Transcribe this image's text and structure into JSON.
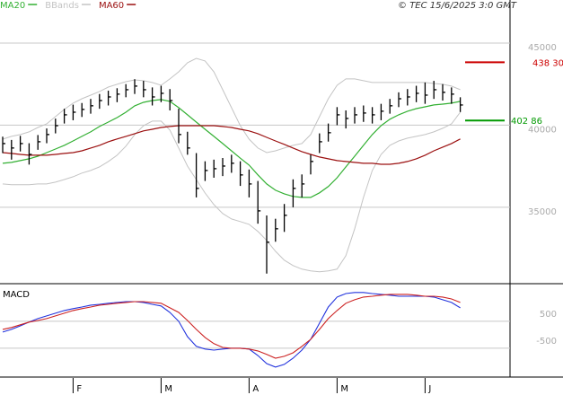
{
  "chart_data": [
    {
      "type": "hlc",
      "categories": [
        null,
        null,
        null,
        null,
        null,
        null,
        null,
        null,
        "F",
        null,
        null,
        null,
        null,
        null,
        null,
        null,
        null,
        null,
        "M",
        null,
        null,
        null,
        null,
        null,
        null,
        null,
        null,
        null,
        "A",
        null,
        null,
        null,
        null,
        null,
        null,
        null,
        null,
        null,
        "M",
        null,
        null,
        null,
        null,
        null,
        null,
        null,
        null,
        null,
        "J",
        null,
        null,
        null,
        null
      ],
      "high": [
        39300,
        39100,
        39350,
        38900,
        39400,
        39800,
        40400,
        41000,
        41250,
        41350,
        41600,
        41900,
        42100,
        42250,
        42500,
        42800,
        42700,
        42300,
        42400,
        42200,
        41000,
        39600,
        38300,
        37800,
        37900,
        38000,
        38200,
        37800,
        37300,
        36600,
        34500,
        34300,
        35200,
        36700,
        37000,
        38200,
        39500,
        40100,
        41100,
        40900,
        41100,
        41200,
        41100,
        41300,
        41600,
        42000,
        42200,
        42400,
        42600,
        42700,
        42500,
        42300,
        41700
      ],
      "low": [
        38300,
        37900,
        38400,
        37600,
        38500,
        38900,
        39500,
        40100,
        40300,
        40500,
        40700,
        41000,
        41200,
        41400,
        41700,
        41900,
        41700,
        41200,
        41400,
        40900,
        38900,
        38200,
        35600,
        36600,
        36800,
        36900,
        37100,
        36300,
        35600,
        34000,
        30960,
        32900,
        33500,
        35000,
        35600,
        37000,
        38300,
        39000,
        40000,
        39800,
        40100,
        40200,
        40100,
        40300,
        40700,
        41100,
        41200,
        41400,
        41300,
        41600,
        41500,
        41300,
        40800
      ],
      "close": [
        38880,
        38610,
        38880,
        38220,
        38990,
        39430,
        39970,
        40630,
        40790,
        40960,
        41180,
        41500,
        41720,
        41890,
        42160,
        42380,
        42160,
        41720,
        41940,
        41500,
        39430,
        38610,
        36150,
        37240,
        37350,
        37510,
        37680,
        36970,
        36420,
        34780,
        32870,
        33690,
        34510,
        36150,
        36420,
        37790,
        38990,
        39540,
        40630,
        40410,
        40630,
        40740,
        40630,
        40850,
        41180,
        41610,
        41720,
        41940,
        41830,
        42160,
        42000,
        41890,
        41230
      ],
      "color": "#000000",
      "ylim": [
        30400,
        46640
      ],
      "yticks": [
        35000,
        40000,
        45000
      ],
      "grid": true,
      "lines": [
        {
          "name": "MA20",
          "color": "#33b033",
          "values": [
            37680,
            37730,
            37840,
            37950,
            38110,
            38330,
            38550,
            38770,
            39040,
            39320,
            39590,
            39920,
            40190,
            40460,
            40790,
            41180,
            41390,
            41500,
            41560,
            41450,
            41070,
            40630,
            40190,
            39750,
            39320,
            38880,
            38440,
            37990,
            37570,
            36970,
            36420,
            36040,
            35820,
            35660,
            35600,
            35600,
            35880,
            36260,
            36800,
            37460,
            38110,
            38770,
            39430,
            39970,
            40360,
            40630,
            40850,
            41010,
            41120,
            41230,
            41280,
            41340,
            41450
          ]
        },
        {
          "name": "BBands",
          "color": "#c4c4c4",
          "upper": [
            39150,
            39320,
            39430,
            39590,
            39860,
            40080,
            40520,
            40960,
            41340,
            41610,
            41830,
            42050,
            42320,
            42490,
            42650,
            42760,
            42710,
            42600,
            42430,
            42820,
            43250,
            43800,
            44070,
            43910,
            43250,
            42160,
            41070,
            39970,
            39150,
            38610,
            38330,
            38440,
            38610,
            38770,
            38880,
            39430,
            40520,
            41610,
            42430,
            42820,
            42820,
            42710,
            42600,
            42600,
            42600,
            42600,
            42600,
            42600,
            42600,
            42540,
            42490,
            42380,
            42160
          ],
          "lower": [
            36420,
            36370,
            36370,
            36370,
            36420,
            36420,
            36530,
            36690,
            36860,
            37080,
            37240,
            37460,
            37790,
            38170,
            38720,
            39430,
            39970,
            40250,
            40250,
            39700,
            38610,
            37510,
            36690,
            35870,
            35160,
            34620,
            34290,
            34130,
            33960,
            33530,
            32980,
            32320,
            31780,
            31450,
            31230,
            31120,
            31070,
            31120,
            31230,
            32050,
            33690,
            35600,
            37240,
            38220,
            38770,
            39040,
            39210,
            39320,
            39430,
            39590,
            39810,
            40080,
            40790
          ]
        },
        {
          "name": "MA60",
          "color": "#9b1010",
          "values": [
            38330,
            38280,
            38220,
            38170,
            38170,
            38170,
            38220,
            38280,
            38330,
            38440,
            38610,
            38770,
            38990,
            39160,
            39320,
            39480,
            39650,
            39750,
            39860,
            39920,
            39970,
            39970,
            39970,
            39970,
            39970,
            39920,
            39860,
            39750,
            39650,
            39480,
            39260,
            39040,
            38830,
            38610,
            38390,
            38220,
            38060,
            37950,
            37840,
            37790,
            37730,
            37680,
            37680,
            37620,
            37620,
            37680,
            37790,
            37950,
            38170,
            38440,
            38660,
            38880,
            39160
          ]
        }
      ],
      "annotations": [
        {
          "value": 43830,
          "label": "438 30",
          "color": "#cc0000"
        },
        {
          "value": 40286,
          "label": "402 86",
          "color": "#009900"
        }
      ],
      "source": "© TEC 15/6/2025 3:0 GMT"
    },
    {
      "type": "line",
      "title": "MACD",
      "series": [
        {
          "color": "#2233dd",
          "values": [
            100,
            200,
            330,
            470,
            600,
            700,
            800,
            900,
            970,
            1030,
            1100,
            1130,
            1170,
            1200,
            1230,
            1230,
            1200,
            1130,
            1070,
            830,
            500,
            -70,
            -430,
            -530,
            -570,
            -530,
            -500,
            -500,
            -530,
            -770,
            -1070,
            -1200,
            -1100,
            -870,
            -570,
            -170,
            430,
            1030,
            1400,
            1530,
            1570,
            1570,
            1530,
            1500,
            1470,
            1430,
            1430,
            1430,
            1430,
            1400,
            1300,
            1200,
            1000
          ]
        },
        {
          "color": "#cc2222",
          "values": [
            200,
            270,
            370,
            470,
            530,
            600,
            700,
            800,
            900,
            970,
            1030,
            1100,
            1130,
            1170,
            1200,
            1230,
            1230,
            1200,
            1170,
            1000,
            830,
            530,
            200,
            -100,
            -330,
            -470,
            -500,
            -500,
            -530,
            -600,
            -730,
            -870,
            -800,
            -670,
            -430,
            -170,
            200,
            600,
            900,
            1170,
            1300,
            1400,
            1430,
            1470,
            1500,
            1500,
            1500,
            1470,
            1430,
            1430,
            1400,
            1330,
            1200
          ]
        }
      ],
      "ylim": [
        -1570,
        1830
      ],
      "yticks": [
        -500,
        500
      ],
      "grid": true
    }
  ]
}
